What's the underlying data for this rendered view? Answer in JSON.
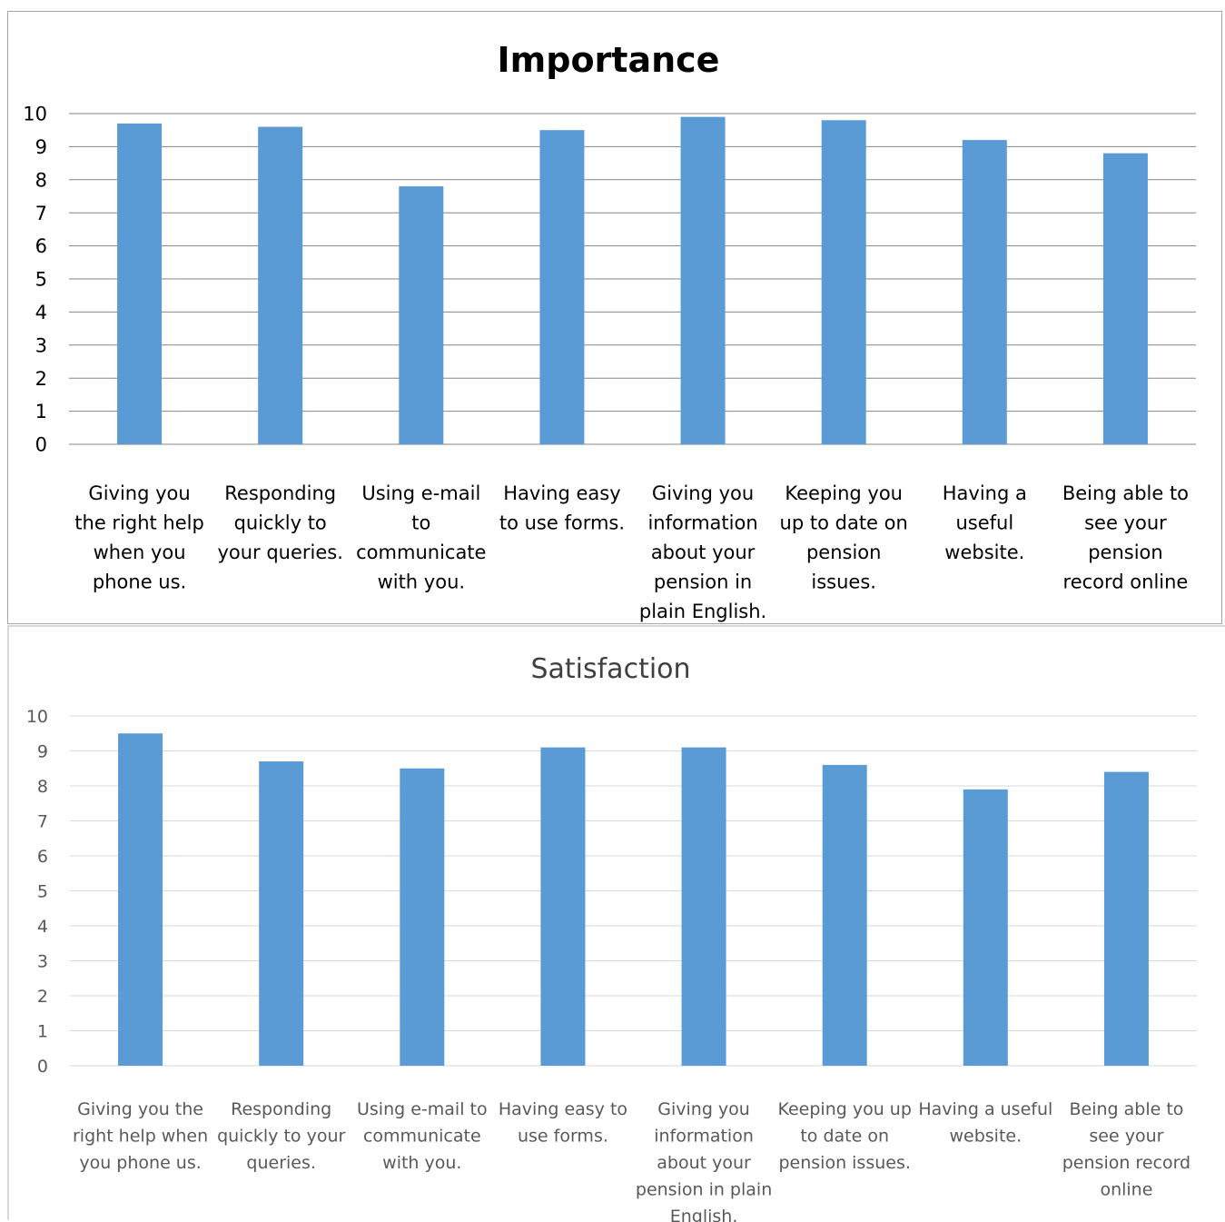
{
  "chart_data": [
    {
      "type": "bar",
      "title": "Importance",
      "categories": [
        "Giving you the right help when you phone us.",
        "Responding quickly to your queries.",
        "Using e-mail to communicate with you.",
        "Having easy to use forms.",
        "Giving you information about your pension in plain English.",
        "Keeping you up to date on pension issues.",
        "Having a useful website.",
        "Being able to see your pension record online"
      ],
      "values": [
        9.7,
        9.6,
        7.8,
        9.5,
        9.9,
        9.8,
        9.2,
        8.8
      ],
      "ylim": [
        0,
        10
      ],
      "yticks": [
        "0",
        "1",
        "2",
        "3",
        "4",
        "5",
        "6",
        "7",
        "8",
        "9",
        "10"
      ],
      "grid": true,
      "legend": "none",
      "bar_color": "#5b9bd5"
    },
    {
      "type": "bar",
      "title": "Satisfaction",
      "categories": [
        "Giving you the right help when you phone us.",
        "Responding quickly to your queries.",
        "Using e-mail to communicate with you.",
        "Having easy to use forms.",
        "Giving you information about your pension in plain English.",
        "Keeping you up to date on pension issues.",
        "Having a useful website.",
        "Being able to see your pension record online"
      ],
      "values": [
        9.5,
        8.7,
        8.5,
        9.1,
        9.1,
        8.6,
        7.9,
        8.4
      ],
      "ylim": [
        0,
        10
      ],
      "yticks": [
        "0",
        "1",
        "2",
        "3",
        "4",
        "5",
        "6",
        "7",
        "8",
        "9",
        "10"
      ],
      "grid": true,
      "legend": "none",
      "bar_color": "#5b9bd5"
    }
  ]
}
